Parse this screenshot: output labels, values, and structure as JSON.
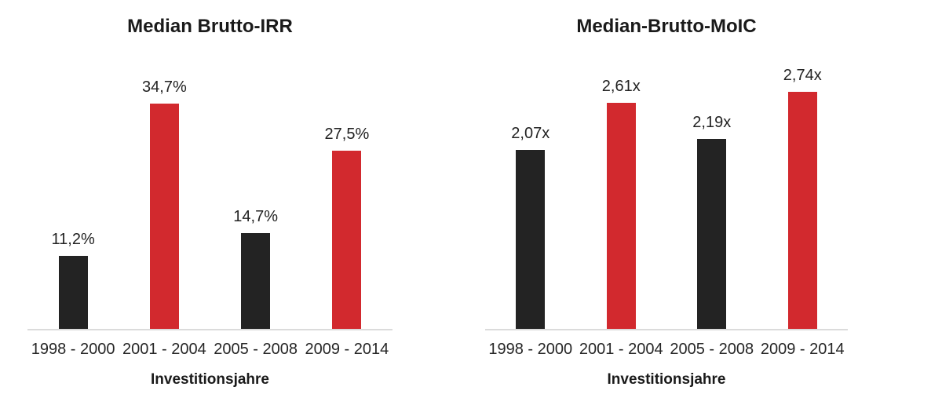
{
  "colors": {
    "bar_dark": "#232323",
    "bar_red": "#d2292e",
    "axis_line": "#dbdbdb",
    "text": "#1a1a1a"
  },
  "chart_data": [
    {
      "type": "bar",
      "title": "Median Brutto-IRR",
      "categories": [
        "1998 - 2000",
        "2001 - 2004",
        "2005 - 2008",
        "2009 - 2014"
      ],
      "values": [
        11.2,
        34.7,
        14.7,
        27.5
      ],
      "value_labels": [
        "11,2%",
        "34,7%",
        "14,7%",
        "27,5%"
      ],
      "bar_colors": [
        "#232323",
        "#d2292e",
        "#232323",
        "#d2292e"
      ],
      "xlabel": "Investitionsjahre",
      "ylabel": "",
      "ylim": [
        0,
        37.5
      ],
      "grid": false,
      "legend": false
    },
    {
      "type": "bar",
      "title": "Median-Brutto-MoIC",
      "categories": [
        "1998 - 2000",
        "2001 - 2004",
        "2005 - 2008",
        "2009 - 2014"
      ],
      "values": [
        2.07,
        2.61,
        2.19,
        2.74
      ],
      "value_labels": [
        "2,07x",
        "2,61x",
        "2,19x",
        "2,74x"
      ],
      "bar_colors": [
        "#232323",
        "#d2292e",
        "#232323",
        "#d2292e"
      ],
      "xlabel": "Investitionsjahre",
      "ylabel": "",
      "ylim": [
        0,
        2.81
      ],
      "grid": false,
      "legend": false
    }
  ]
}
